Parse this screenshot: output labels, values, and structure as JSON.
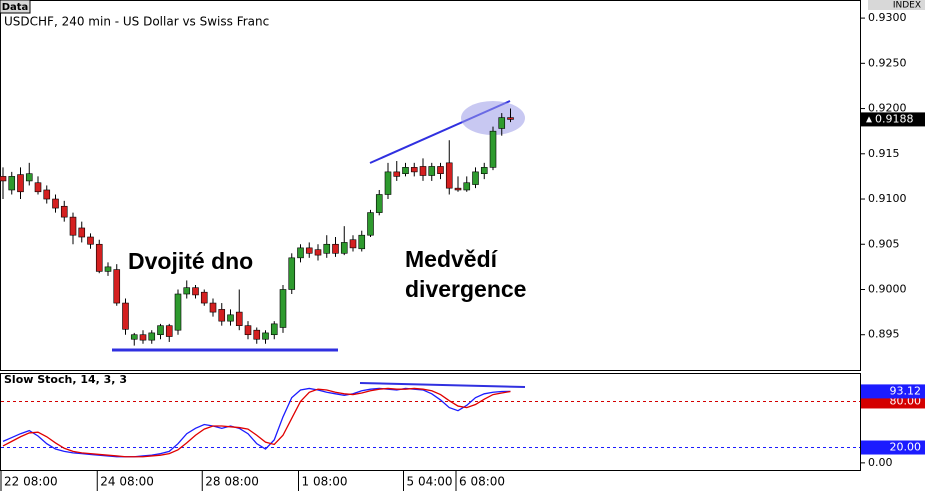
{
  "labels": {
    "data_tab": "Data",
    "index": "INDEX"
  },
  "chart_data": [
    {
      "type": "candlestick",
      "title": "USDCHF, 240 min - US Dollar vs Swiss Franc",
      "annotations": [
        "Dvojité dno",
        "Medvědí divergence"
      ],
      "up_color": "#2e9a2e",
      "down_color": "#d42020",
      "open": [
        0.9125,
        0.911,
        0.9127,
        0.912,
        0.9118,
        0.911,
        0.91,
        0.9092,
        0.908,
        0.9068,
        0.9058,
        0.905,
        0.902,
        0.9022,
        0.8985,
        0.8945,
        0.895,
        0.8944,
        0.895,
        0.896,
        0.8955,
        0.8995,
        0.9002,
        0.8997,
        0.8985,
        0.8978,
        0.8965,
        0.8975,
        0.896,
        0.8955,
        0.8945,
        0.895,
        0.8958,
        0.9,
        0.9035,
        0.9046,
        0.9044,
        0.904,
        0.905,
        0.904,
        0.9055,
        0.9045,
        0.906,
        0.9085,
        0.9105,
        0.913,
        0.9128,
        0.9135,
        0.9136,
        0.9126,
        0.9136,
        0.914,
        0.9112,
        0.911,
        0.9116,
        0.9128,
        0.9135,
        0.9178,
        0.919
      ],
      "high": [
        0.9135,
        0.913,
        0.9135,
        0.914,
        0.9125,
        0.9115,
        0.9105,
        0.9098,
        0.9085,
        0.9075,
        0.9062,
        0.9055,
        0.903,
        0.9028,
        0.899,
        0.8952,
        0.8955,
        0.8955,
        0.8962,
        0.8962,
        0.9,
        0.901,
        0.9005,
        0.9,
        0.899,
        0.8985,
        0.8978,
        0.9,
        0.8965,
        0.8958,
        0.8955,
        0.8965,
        0.9005,
        0.904,
        0.905,
        0.9052,
        0.905,
        0.906,
        0.9058,
        0.907,
        0.906,
        0.9065,
        0.9088,
        0.911,
        0.914,
        0.9142,
        0.914,
        0.914,
        0.9145,
        0.914,
        0.914,
        0.9165,
        0.9125,
        0.9125,
        0.9135,
        0.914,
        0.918,
        0.9195,
        0.92
      ],
      "low": [
        0.91,
        0.9105,
        0.91,
        0.9115,
        0.9105,
        0.9095,
        0.9085,
        0.9075,
        0.905,
        0.9052,
        0.9045,
        0.9018,
        0.9015,
        0.8982,
        0.895,
        0.8938,
        0.894,
        0.894,
        0.8945,
        0.8942,
        0.895,
        0.899,
        0.899,
        0.8982,
        0.897,
        0.896,
        0.896,
        0.8955,
        0.8945,
        0.894,
        0.894,
        0.8945,
        0.8952,
        0.8995,
        0.903,
        0.9035,
        0.9032,
        0.9035,
        0.9036,
        0.9038,
        0.9042,
        0.9042,
        0.9058,
        0.9082,
        0.91,
        0.912,
        0.9125,
        0.9125,
        0.912,
        0.912,
        0.9122,
        0.9105,
        0.9108,
        0.9108,
        0.9112,
        0.9122,
        0.9132,
        0.917,
        0.9185
      ],
      "close": [
        0.912,
        0.9125,
        0.9108,
        0.9128,
        0.9108,
        0.91,
        0.909,
        0.908,
        0.906,
        0.9058,
        0.905,
        0.902,
        0.9025,
        0.8985,
        0.8956,
        0.895,
        0.8944,
        0.8952,
        0.896,
        0.8948,
        0.8995,
        0.9002,
        0.8994,
        0.8985,
        0.8975,
        0.8965,
        0.8972,
        0.896,
        0.895,
        0.8945,
        0.8952,
        0.8962,
        0.9,
        0.9035,
        0.9046,
        0.904,
        0.9038,
        0.905,
        0.904,
        0.9052,
        0.9046,
        0.906,
        0.9085,
        0.9105,
        0.913,
        0.9125,
        0.9135,
        0.913,
        0.9126,
        0.9136,
        0.9128,
        0.9112,
        0.911,
        0.9118,
        0.913,
        0.9135,
        0.9175,
        0.919,
        0.9188
      ],
      "current_price": 0.9188,
      "ylim": [
        0.8911,
        0.932
      ],
      "yticks": [
        {
          "value": 0.93,
          "label": "0.9300"
        },
        {
          "value": 0.925,
          "label": "0.9250"
        },
        {
          "value": 0.92,
          "label": "0.9200"
        },
        0.915,
        {
          "value": 0.91,
          "label": "0.9100"
        },
        0.905,
        {
          "value": 0.9,
          "label": "0.9000"
        },
        0.895
      ]
    },
    {
      "type": "line",
      "title": "Slow Stoch, 14, 3, 3",
      "categories": [
        "22 08:00",
        null,
        null,
        null,
        null,
        null,
        null,
        null,
        null,
        null,
        null,
        "24 08:00",
        null,
        null,
        null,
        null,
        null,
        null,
        null,
        null,
        null,
        null,
        null,
        "28 08:00",
        null,
        null,
        null,
        null,
        null,
        null,
        null,
        null,
        null,
        null,
        "1 08:00",
        null,
        null,
        null,
        null,
        null,
        null,
        null,
        null,
        null,
        null,
        null,
        "5 04:00",
        null,
        null,
        null,
        null,
        null,
        "6 08:00",
        null,
        null,
        null,
        null,
        null,
        null
      ],
      "series": [
        {
          "color": "#1c1cff",
          "values": [
            28,
            33,
            38,
            42,
            35,
            25,
            18,
            15,
            13,
            12,
            11,
            10,
            9,
            8,
            8,
            8,
            9,
            10,
            12,
            15,
            25,
            38,
            45,
            50,
            48,
            45,
            48,
            45,
            38,
            25,
            18,
            30,
            60,
            85,
            95,
            97,
            95,
            92,
            90,
            88,
            90,
            94,
            96,
            97,
            96,
            95,
            97,
            96,
            95,
            90,
            82,
            72,
            68,
            75,
            85,
            90,
            92,
            93,
            93.12
          ]
        },
        {
          "color": "#e00000",
          "values": [
            22,
            28,
            34,
            39,
            40,
            34,
            26,
            19,
            15,
            13,
            12,
            11,
            10,
            9,
            8,
            8,
            8,
            9,
            10,
            12,
            17,
            26,
            36,
            44,
            48,
            48,
            47,
            46,
            44,
            36,
            27,
            24,
            36,
            58,
            80,
            92,
            96,
            95,
            92,
            90,
            89,
            91,
            94,
            96,
            97,
            96,
            96,
            97,
            96,
            94,
            89,
            81,
            74,
            72,
            76,
            83,
            89,
            91,
            93
          ]
        }
      ],
      "current_value": 93.12,
      "levels": [
        {
          "value": 80,
          "label": "80.00",
          "color": "#d40000"
        },
        {
          "value": 20,
          "label": "20.00",
          "color": "#1c1cff"
        }
      ],
      "ylim": [
        -9.3,
        115.8
      ],
      "yticks": [
        {
          "value": 0,
          "label": "0.00"
        }
      ]
    }
  ]
}
